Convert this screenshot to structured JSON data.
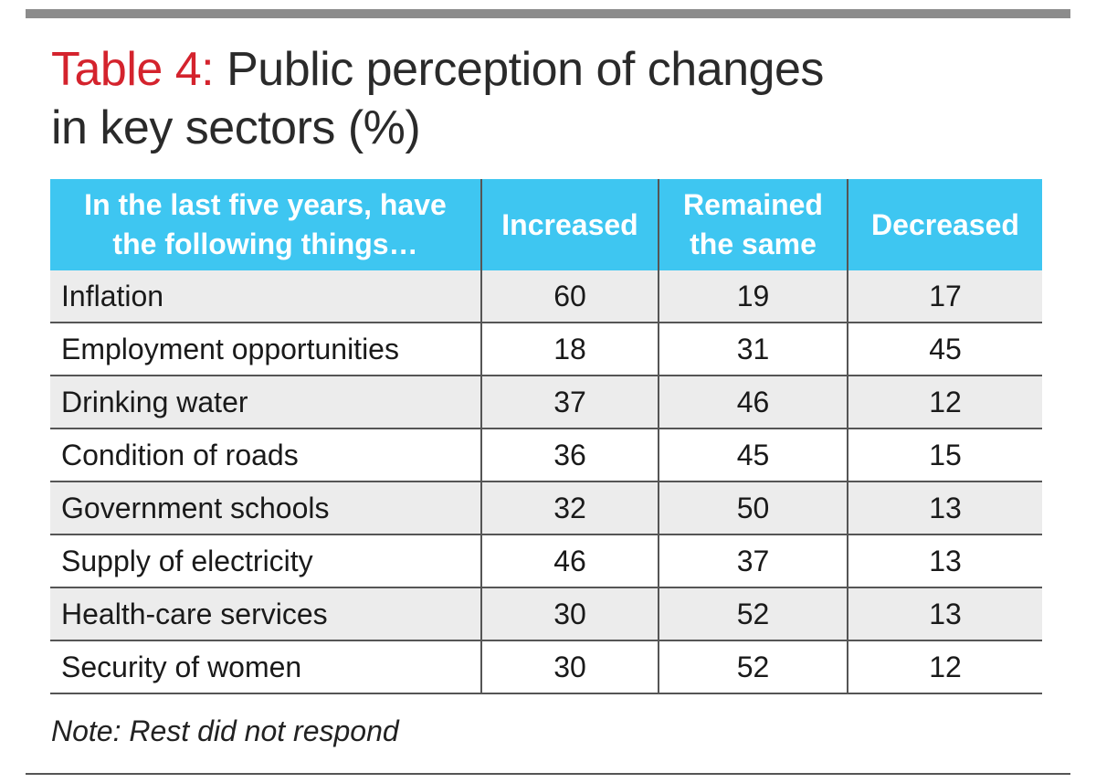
{
  "chart_data": {
    "type": "table",
    "title_prefix": "Table 4:",
    "title_line1": "Public perception of changes",
    "title_line2": "in key sectors (%)",
    "columns": [
      "In the last five years, have the following things…",
      "Increased",
      "Remained the same",
      "Decreased"
    ],
    "rows": [
      {
        "label": "Inflation",
        "increased": "60",
        "same": "19",
        "decreased": "17"
      },
      {
        "label": "Employment opportunities",
        "increased": "18",
        "same": "31",
        "decreased": "45"
      },
      {
        "label": "Drinking water",
        "increased": "37",
        "same": "46",
        "decreased": "12"
      },
      {
        "label": "Condition of roads",
        "increased": "36",
        "same": "45",
        "decreased": "15"
      },
      {
        "label": "Government schools",
        "increased": "32",
        "same": "50",
        "decreased": "13"
      },
      {
        "label": "Supply of electricity",
        "increased": "46",
        "same": "37",
        "decreased": "13"
      },
      {
        "label": "Health-care services",
        "increased": "30",
        "same": "52",
        "decreased": "13"
      },
      {
        "label": "Security of women",
        "increased": "30",
        "same": "52",
        "decreased": "12"
      }
    ],
    "note": "Note: Rest did not respond"
  },
  "colors": {
    "title_prefix": "#d4232d",
    "header_bg": "#3ec6f1",
    "header_text": "#ffffff",
    "row_alt_bg": "#ececec",
    "rule": "#8c8c8c"
  }
}
